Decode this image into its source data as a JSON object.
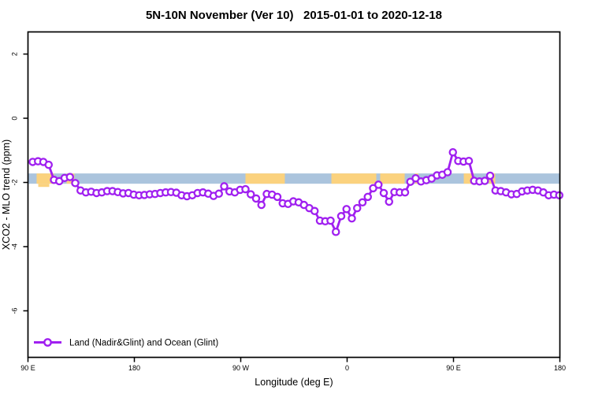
{
  "title": "5N-10N November (Ver 10)   2015-01-01 to 2020-12-18",
  "legend": {
    "label": "Land (Nadir&Glint) and Ocean (Glint)",
    "marker": "open-circle-on-line"
  },
  "colors": {
    "series_purple": "#A020F0",
    "marker_fill": "#ffffff",
    "ocean_band": "#ABC4DD",
    "land_band": "#FBD27E",
    "axis_black": "#000000"
  },
  "chart_data": {
    "type": "line",
    "title": "5N-10N November (Ver 10)   2015-01-01 to 2020-12-18",
    "xlabel": "Longitude (deg E)",
    "ylabel": "XCO2 - MLO trend (ppm)",
    "x_axis": {
      "tick_labels": [
        "90 E",
        "180",
        "90 W",
        "0",
        "90 E",
        "180"
      ],
      "tick_positions_deg": [
        90,
        180,
        270,
        360,
        450,
        540
      ],
      "range_deg": [
        90,
        540
      ],
      "note": "longitude axis wraps eastward from 90E around the globe to 180"
    },
    "y_axis": {
      "tick_values": [
        2,
        0,
        -2,
        -4,
        -6
      ],
      "tick_labels": [
        "2",
        "0",
        "-2",
        "-4",
        "-6"
      ],
      "ylim": [
        -7.45,
        2.69
      ]
    },
    "grid": "off",
    "legend_position": "bottom-left-inside",
    "band": {
      "meaning": "land/ocean map strip along 5N-10N",
      "top_ppm": -1.72,
      "bottom_ppm": -2.04,
      "ocean_color": "#ABC4DD",
      "land_color": "#FBD27E",
      "land_segments_deg": [
        [
          97.3,
          112.0
        ],
        [
          122.7,
          129.3
        ],
        [
          274.0,
          307.3
        ],
        [
          346.7,
          384.7
        ],
        [
          388.0,
          408.7
        ],
        [
          417.5,
          420.3
        ],
        [
          458.7,
          467.3
        ],
        [
          480.0,
          485.3
        ]
      ],
      "land_overflow_patch": {
        "lon_deg": [
          98.7,
          108.0
        ],
        "ppm": [
          -2.04,
          -2.14
        ]
      }
    },
    "series": [
      {
        "name": "Land (Nadir&Glint) and Ocean (Glint)",
        "color": "#A020F0",
        "marker": "open-circle",
        "lon_start_deg": 94.0,
        "lon_step_deg": 4.5,
        "values_ppm": [
          -1.36,
          -1.34,
          -1.36,
          -1.45,
          -1.92,
          -1.96,
          -1.86,
          -1.83,
          -2.02,
          -2.25,
          -2.31,
          -2.29,
          -2.33,
          -2.31,
          -2.27,
          -2.27,
          -2.3,
          -2.34,
          -2.33,
          -2.38,
          -2.4,
          -2.39,
          -2.37,
          -2.36,
          -2.33,
          -2.31,
          -2.3,
          -2.32,
          -2.4,
          -2.43,
          -2.4,
          -2.33,
          -2.31,
          -2.35,
          -2.42,
          -2.35,
          -2.12,
          -2.28,
          -2.31,
          -2.23,
          -2.21,
          -2.37,
          -2.5,
          -2.7,
          -2.36,
          -2.38,
          -2.45,
          -2.65,
          -2.67,
          -2.59,
          -2.62,
          -2.7,
          -2.8,
          -2.89,
          -3.19,
          -3.21,
          -3.19,
          -3.54,
          -3.05,
          -2.83,
          -3.12,
          -2.8,
          -2.62,
          -2.45,
          -2.18,
          -2.07,
          -2.33,
          -2.6,
          -2.3,
          -2.31,
          -2.31,
          -1.98,
          -1.87,
          -1.97,
          -1.93,
          -1.88,
          -1.78,
          -1.76,
          -1.68,
          -1.06,
          -1.33,
          -1.35,
          -1.33,
          -1.95,
          -1.97,
          -1.95,
          -1.79,
          -2.25,
          -2.27,
          -2.31,
          -2.37,
          -2.36,
          -2.28,
          -2.25,
          -2.23,
          -2.25,
          -2.31,
          -2.4,
          -2.38,
          -2.4
        ]
      }
    ]
  }
}
